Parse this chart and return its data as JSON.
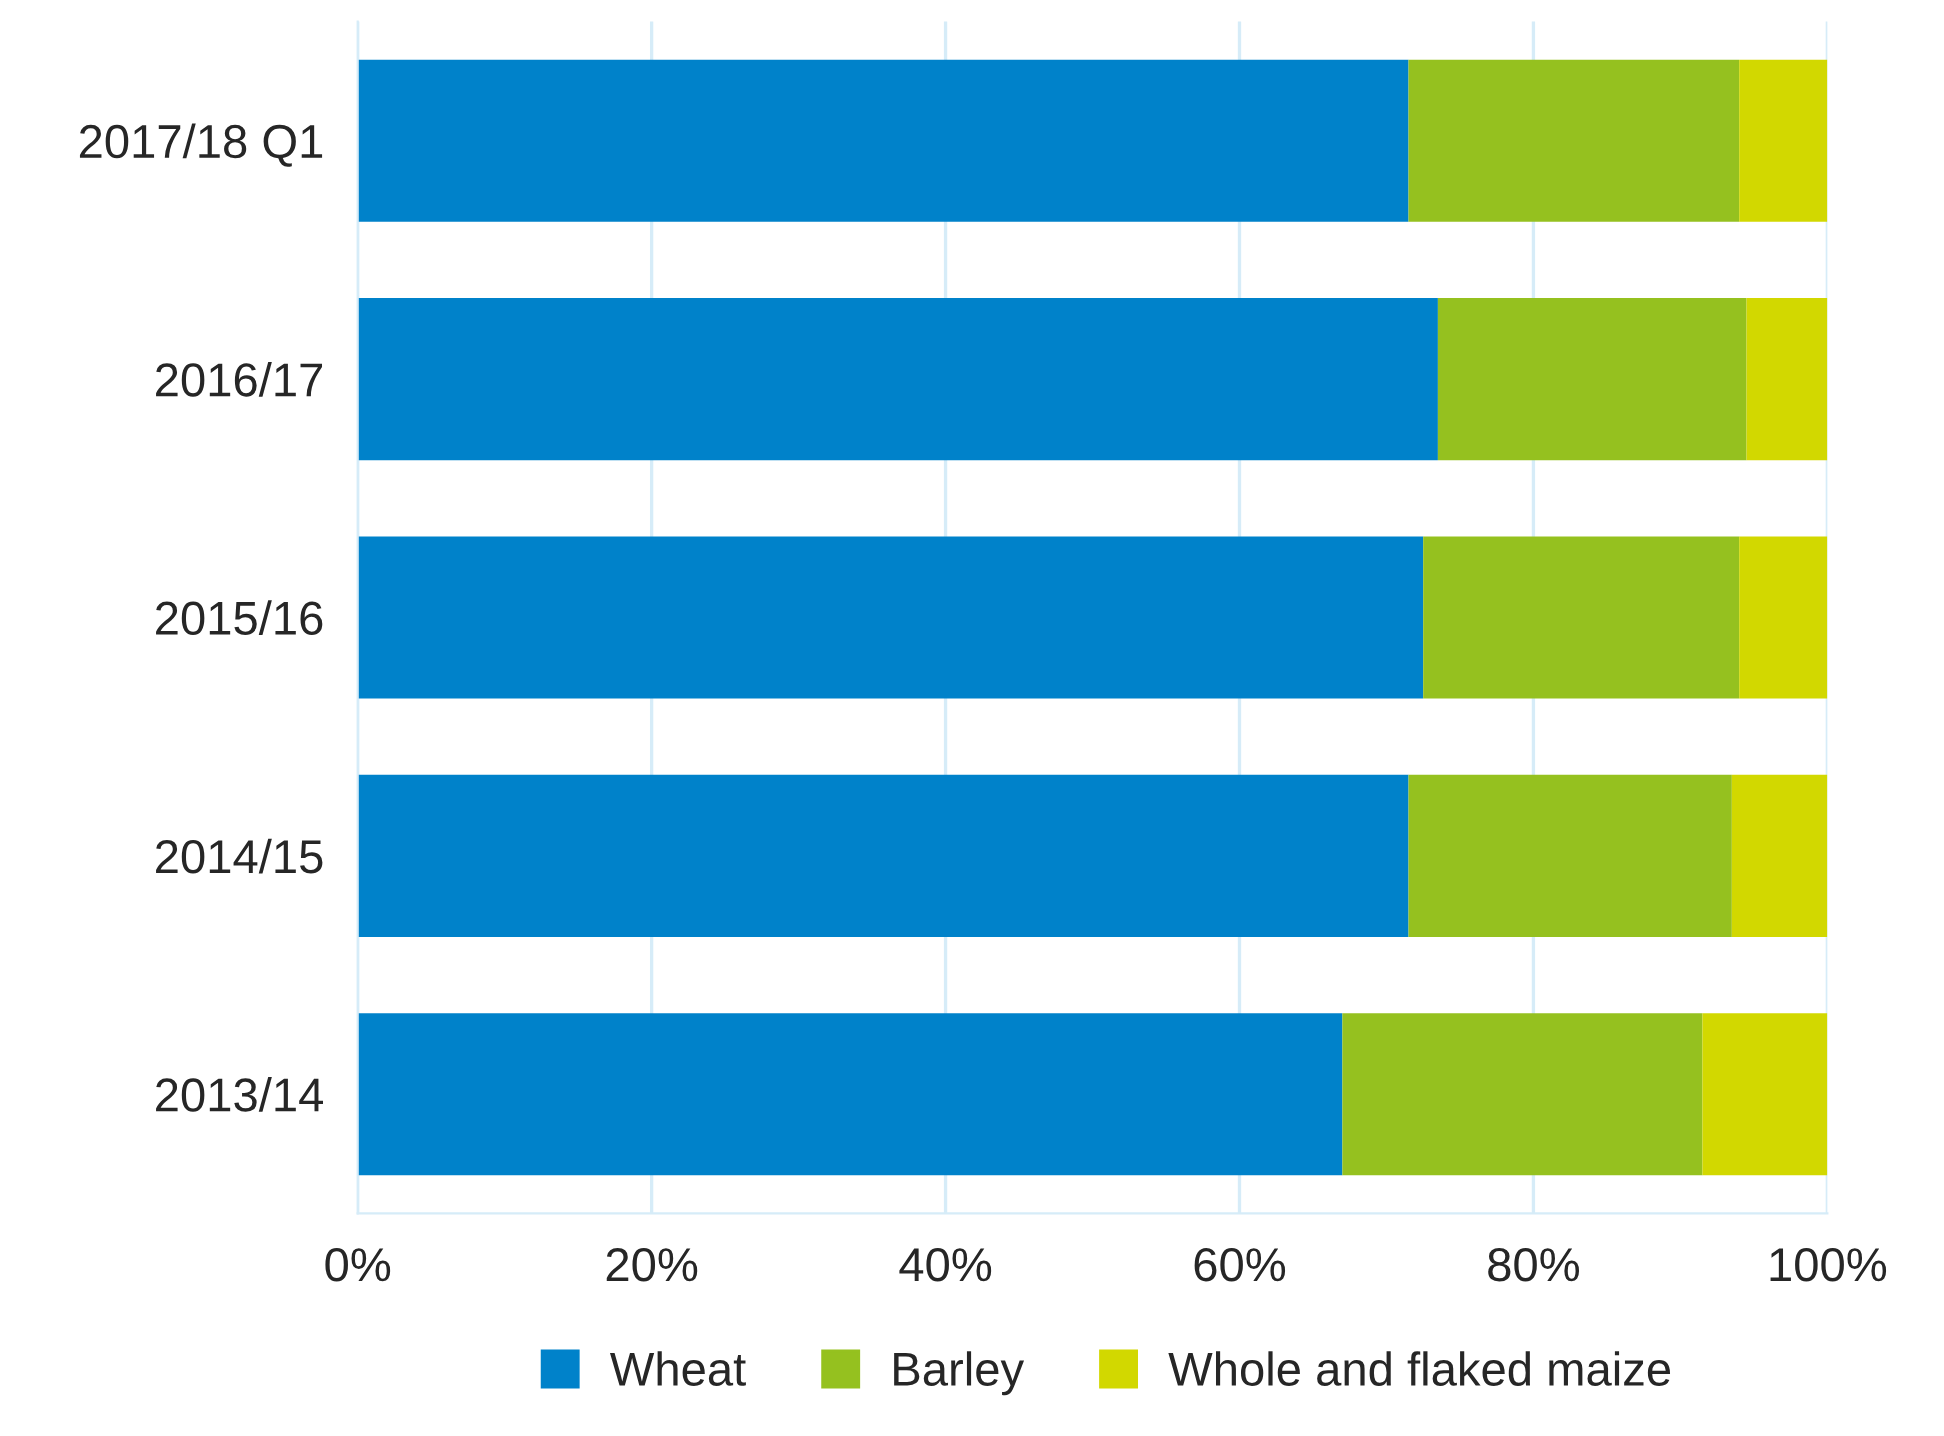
{
  "chart_data": {
    "type": "bar",
    "orientation": "horizontal",
    "stacked": true,
    "categories": [
      "2017/18 Q1",
      "2016/17",
      "2015/16",
      "2014/15",
      "2013/14"
    ],
    "series": [
      {
        "name": "Wheat",
        "color": "#0082ca",
        "values": [
          71.5,
          73.5,
          72.5,
          71.5,
          67
        ]
      },
      {
        "name": "Barley",
        "color": "#95c11f",
        "values": [
          22.5,
          21,
          21.5,
          22,
          24.5
        ]
      },
      {
        "name": "Whole and flaked maize",
        "color": "#d2d800",
        "values": [
          6,
          5.5,
          6,
          6.5,
          8.5
        ]
      }
    ],
    "xlim": [
      0,
      100
    ],
    "xticks": [
      {
        "value": 0,
        "label": "0%"
      },
      {
        "value": 20,
        "label": "20%"
      },
      {
        "value": 40,
        "label": "40%"
      },
      {
        "value": 60,
        "label": "60%"
      },
      {
        "value": 80,
        "label": "80%"
      },
      {
        "value": 100,
        "label": "100%"
      }
    ],
    "grid": "x",
    "legend": "bottom",
    "marker": "square"
  }
}
